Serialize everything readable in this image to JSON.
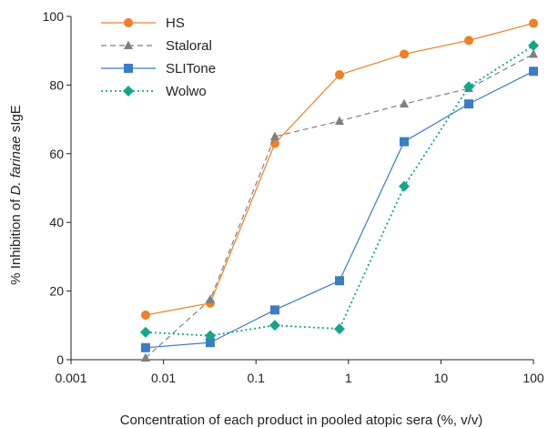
{
  "chart_data": {
    "type": "line",
    "xscale": "log",
    "xlim": [
      0.001,
      100
    ],
    "ylim": [
      0,
      100
    ],
    "xticks": [
      "0.001",
      "0.01",
      "0.1",
      "1",
      "10",
      "100"
    ],
    "yticks": [
      "0",
      "20",
      "40",
      "60",
      "80",
      "100"
    ],
    "xlabel": "Concentration of each product in pooled atopic sera (%, v/v)",
    "ylabel_prefix": "% Inhibition of ",
    "ylabel_italic": "D. farinae",
    "ylabel_suffix": " sIgE",
    "grid": false,
    "legend_position": "top-left",
    "x": [
      0.0064,
      0.032,
      0.16,
      0.8,
      4,
      20,
      100
    ],
    "series": [
      {
        "name": "HS",
        "color": "#F07F26",
        "marker": "circle",
        "dash": "solid",
        "values": [
          13,
          16.5,
          63,
          83,
          89,
          93,
          98
        ]
      },
      {
        "name": "Staloral",
        "color": "#808080",
        "marker": "triangle",
        "dash": "dashed",
        "values": [
          0.5,
          17.5,
          65,
          69.5,
          74.5,
          79,
          89
        ]
      },
      {
        "name": "SLITone",
        "color": "#3B7CC4",
        "marker": "square",
        "dash": "solid",
        "values": [
          3.5,
          5,
          14.5,
          23,
          63.5,
          74.5,
          84
        ]
      },
      {
        "name": "Wolwo",
        "color": "#14A68A",
        "marker": "diamond",
        "dash": "dotted",
        "values": [
          8,
          7,
          10,
          9,
          50.5,
          79.5,
          91.5
        ]
      }
    ]
  }
}
